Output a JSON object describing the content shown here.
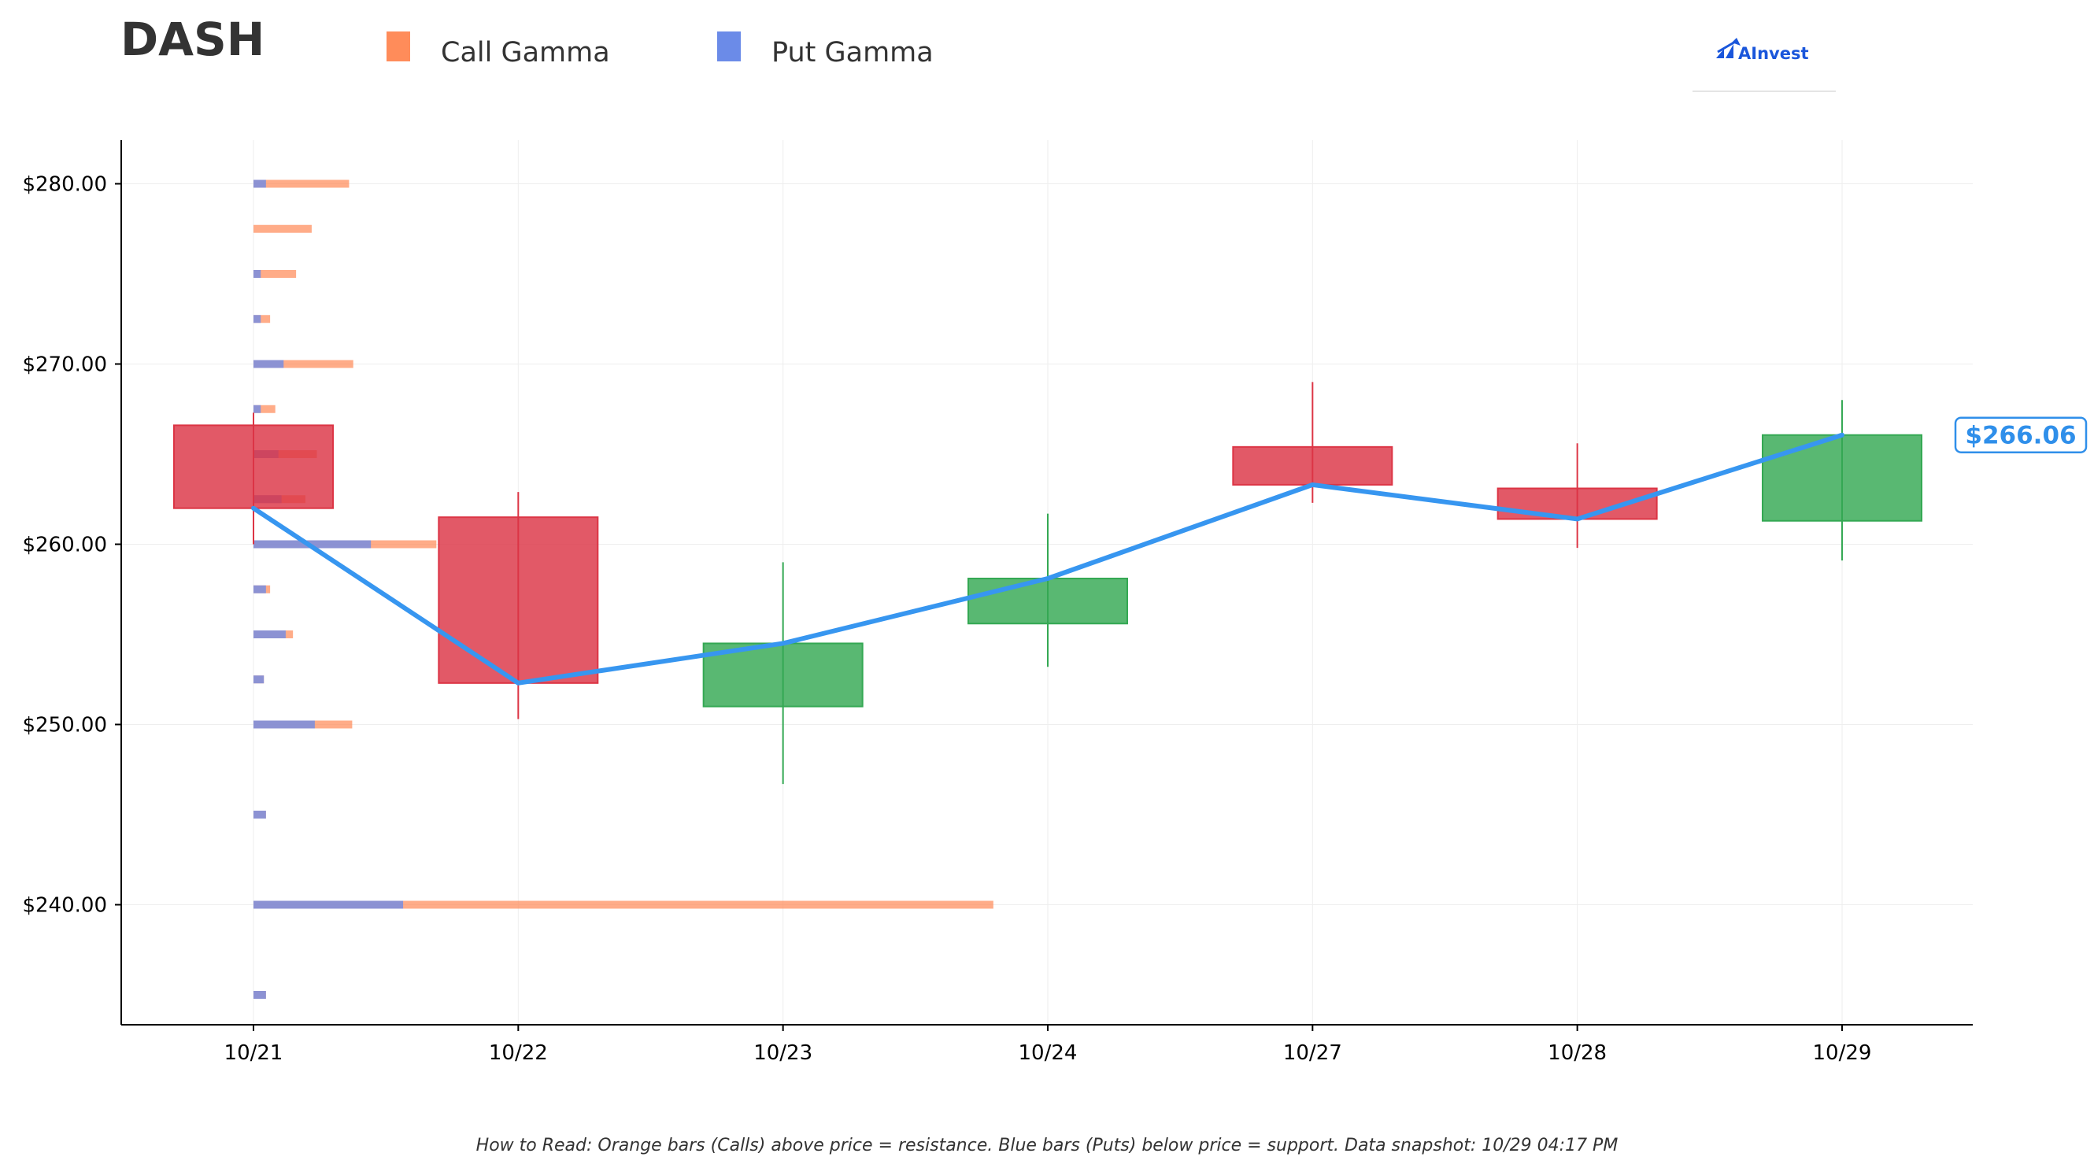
{
  "chart_data": {
    "type": "candlestick",
    "title": "DASH",
    "legend": [
      {
        "name": "Call Gamma",
        "color": "#ff8c5a"
      },
      {
        "name": "Put Gamma",
        "color": "#6b8be8"
      }
    ],
    "legend_position": "top",
    "categories": [
      "10/21",
      "10/22",
      "10/23",
      "10/24",
      "10/27",
      "10/28",
      "10/29"
    ],
    "ylim": [
      233.5,
      282.5
    ],
    "yticks": [
      240,
      250,
      260,
      270,
      280
    ],
    "ytick_labels": [
      "$240.00",
      "$250.00",
      "$260.00",
      "$270.00",
      "$280.00"
    ],
    "grid": true,
    "candles": [
      {
        "date": "10/21",
        "open": 266.6,
        "high": 267.3,
        "low": 260.0,
        "close": 262.0
      },
      {
        "date": "10/22",
        "open": 261.5,
        "high": 262.9,
        "low": 250.3,
        "close": 252.3
      },
      {
        "date": "10/23",
        "open": 251.0,
        "high": 259.0,
        "low": 246.7,
        "close": 254.5
      },
      {
        "date": "10/24",
        "open": 255.6,
        "high": 261.7,
        "low": 253.2,
        "close": 258.1
      },
      {
        "date": "10/27",
        "open": 265.4,
        "high": 269.0,
        "low": 262.3,
        "close": 263.3
      },
      {
        "date": "10/28",
        "open": 263.1,
        "high": 265.6,
        "low": 259.8,
        "close": 261.4
      },
      {
        "date": "10/29",
        "open": 261.3,
        "high": 268.0,
        "low": 259.1,
        "close": 266.06
      }
    ],
    "close_line": [
      262.0,
      252.3,
      254.5,
      258.1,
      263.3,
      261.4,
      266.06
    ],
    "gamma_levels": [
      {
        "strike": 280.0,
        "put": 0.12,
        "call": 0.92
      },
      {
        "strike": 277.5,
        "put": 0.0,
        "call": 0.56
      },
      {
        "strike": 275.0,
        "put": 0.07,
        "call": 0.41
      },
      {
        "strike": 272.5,
        "put": 0.07,
        "call": 0.16
      },
      {
        "strike": 270.0,
        "put": 0.29,
        "call": 0.96
      },
      {
        "strike": 267.5,
        "put": 0.07,
        "call": 0.21
      },
      {
        "strike": 265.0,
        "put": 0.24,
        "call": 0.61
      },
      {
        "strike": 262.5,
        "put": 0.27,
        "call": 0.5
      },
      {
        "strike": 260.0,
        "put": 1.13,
        "call": 1.76
      },
      {
        "strike": 257.5,
        "put": 0.12,
        "call": 0.16
      },
      {
        "strike": 255.0,
        "put": 0.31,
        "call": 0.38
      },
      {
        "strike": 252.5,
        "put": 0.1,
        "call": 0.1
      },
      {
        "strike": 250.0,
        "put": 0.59,
        "call": 0.95
      },
      {
        "strike": 245.0,
        "put": 0.12,
        "call": 0.12
      },
      {
        "strike": 240.0,
        "put": 1.44,
        "call": 7.12
      },
      {
        "strike": 235.0,
        "put": 0.12,
        "call": 0.12
      }
    ],
    "current_price_label": "$266.06",
    "footnote": "How to Read: Orange bars (Calls) above price = resistance. Blue bars (Puts) below price = support. Data snapshot: 10/29 04:17 PM"
  },
  "branding": {
    "logo_text": "AInvest",
    "logo_icon": "chart-arrow-icon"
  },
  "colors": {
    "call": "#ff8c5a",
    "put": "#6b8be8",
    "bullish": "#34a853",
    "bearish": "#dc3545",
    "close_line": "#3796f0",
    "price_label": "#2f8fea"
  }
}
